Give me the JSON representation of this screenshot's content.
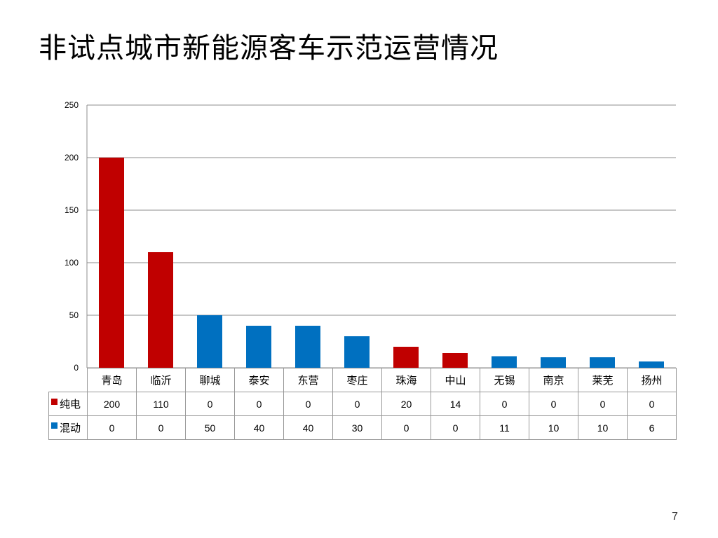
{
  "title": "非试点城市新能源客车示范运营情况",
  "page_number": "7",
  "chart_data": {
    "type": "bar",
    "categories": [
      "青岛",
      "临沂",
      "聊城",
      "泰安",
      "东营",
      "枣庄",
      "珠海",
      "中山",
      "无锡",
      "南京",
      "莱芜",
      "扬州"
    ],
    "series": [
      {
        "name": "纯电",
        "color": "#C00000",
        "values": [
          200,
          110,
          0,
          0,
          0,
          0,
          20,
          14,
          0,
          0,
          0,
          0
        ]
      },
      {
        "name": "混动",
        "color": "#0070C0",
        "values": [
          0,
          0,
          50,
          40,
          40,
          30,
          0,
          0,
          11,
          10,
          10,
          6
        ]
      }
    ],
    "ylim": [
      0,
      250
    ],
    "yticks": [
      0,
      50,
      100,
      150,
      200,
      250
    ],
    "grid": true,
    "legend": "data table"
  }
}
